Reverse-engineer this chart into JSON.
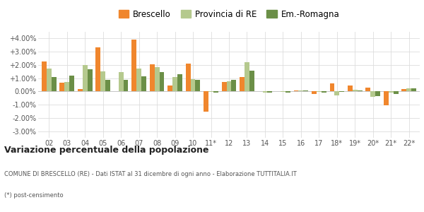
{
  "categories": [
    "02",
    "03",
    "04",
    "05",
    "06",
    "07",
    "08",
    "09",
    "10",
    "11*",
    "12",
    "13",
    "14",
    "15",
    "16",
    "17",
    "18*",
    "19*",
    "20*",
    "21*",
    "22*"
  ],
  "brescello": [
    2.25,
    0.65,
    0.2,
    3.35,
    0.0,
    3.9,
    2.05,
    0.45,
    2.1,
    -1.55,
    0.7,
    1.1,
    0.0,
    0.0,
    0.05,
    -0.2,
    0.6,
    0.45,
    0.3,
    -1.05,
    0.2
  ],
  "provincia_re": [
    1.75,
    0.7,
    2.0,
    1.5,
    1.45,
    1.75,
    1.85,
    1.1,
    0.95,
    -0.05,
    0.75,
    2.2,
    -0.1,
    -0.05,
    0.05,
    -0.05,
    -0.3,
    0.15,
    -0.4,
    -0.1,
    0.25
  ],
  "emilia_romagna": [
    1.1,
    1.2,
    1.65,
    0.85,
    0.9,
    1.15,
    1.45,
    1.3,
    0.85,
    -0.1,
    0.85,
    1.55,
    -0.1,
    -0.1,
    0.1,
    -0.1,
    -0.05,
    0.05,
    -0.35,
    -0.2,
    0.25
  ],
  "brescello_color": "#f0862d",
  "provincia_re_color": "#b5c98e",
  "emilia_romagna_color": "#6b8f47",
  "title": "Variazione percentuale della popolazione",
  "subtitle1": "COMUNE DI BRESCELLO (RE) - Dati ISTAT al 31 dicembre di ogni anno - Elaborazione TUTTITALIA.IT",
  "subtitle2": "(*) post-censimento",
  "ylim": [
    -3.5,
    4.5
  ],
  "yticks": [
    -3.0,
    -2.0,
    -1.0,
    0.0,
    1.0,
    2.0,
    3.0,
    4.0
  ],
  "ytick_labels": [
    "-3.00%",
    "-2.00%",
    "-1.00%",
    "0.00%",
    "+1.00%",
    "+2.00%",
    "+3.00%",
    "+4.00%"
  ],
  "legend_labels": [
    "Brescello",
    "Provincia di RE",
    "Em.-Romagna"
  ],
  "background_color": "#ffffff",
  "grid_color": "#dddddd"
}
